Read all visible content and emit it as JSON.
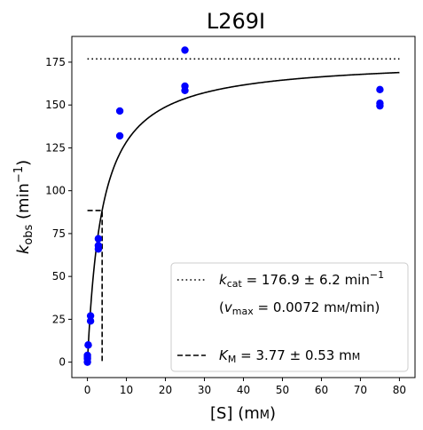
{
  "chart_data": {
    "type": "scatter",
    "title": "L269I",
    "xlabel": "[S] (mM)",
    "ylabel": "k_obs (min^-1)",
    "xlim": [
      -4,
      84
    ],
    "ylim": [
      -9,
      190
    ],
    "x_ticks": [
      "0",
      "10",
      "20",
      "30",
      "40",
      "50",
      "60",
      "70",
      "80"
    ],
    "y_ticks": [
      "0",
      "25",
      "50",
      "75",
      "100",
      "125",
      "150",
      "175"
    ],
    "series": [
      {
        "style": "points",
        "color": "#0000ff",
        "points": [
          [
            0,
            0
          ],
          [
            0,
            2
          ],
          [
            0,
            3
          ],
          [
            0,
            4
          ],
          [
            0.2,
            10
          ],
          [
            0.2,
            10
          ],
          [
            0.8,
            24
          ],
          [
            0.8,
            27
          ],
          [
            2.8,
            66
          ],
          [
            2.8,
            68
          ],
          [
            2.8,
            72
          ],
          [
            8.3,
            132
          ],
          [
            8.3,
            146.5
          ],
          [
            25,
            158.5
          ],
          [
            25,
            161
          ],
          [
            25,
            182
          ],
          [
            75,
            149.5
          ],
          [
            75,
            151
          ],
          [
            75,
            159
          ]
        ]
      },
      {
        "style": "fit-curve",
        "color": "#000000",
        "model": "michaelis-menten",
        "vmax": 176.9,
        "km": 3.77,
        "x_range": [
          0,
          80
        ]
      },
      {
        "style": "dotted-line",
        "color": "#000000",
        "y": 176.9,
        "x_range": [
          0,
          80
        ]
      },
      {
        "style": "dashed-line",
        "color": "#000000",
        "points": [
          [
            0,
            88.45
          ],
          [
            3.77,
            88.45
          ],
          [
            3.77,
            0
          ]
        ]
      }
    ],
    "legend": {
      "placement": "lower-right",
      "kcat_label": "k_cat = 176.9 ± 6.2 min^-1",
      "vmax_label": "(v_max = 0.0072 mM/min)",
      "km_label": "K_M = 3.77 ± 0.53 mM"
    }
  }
}
